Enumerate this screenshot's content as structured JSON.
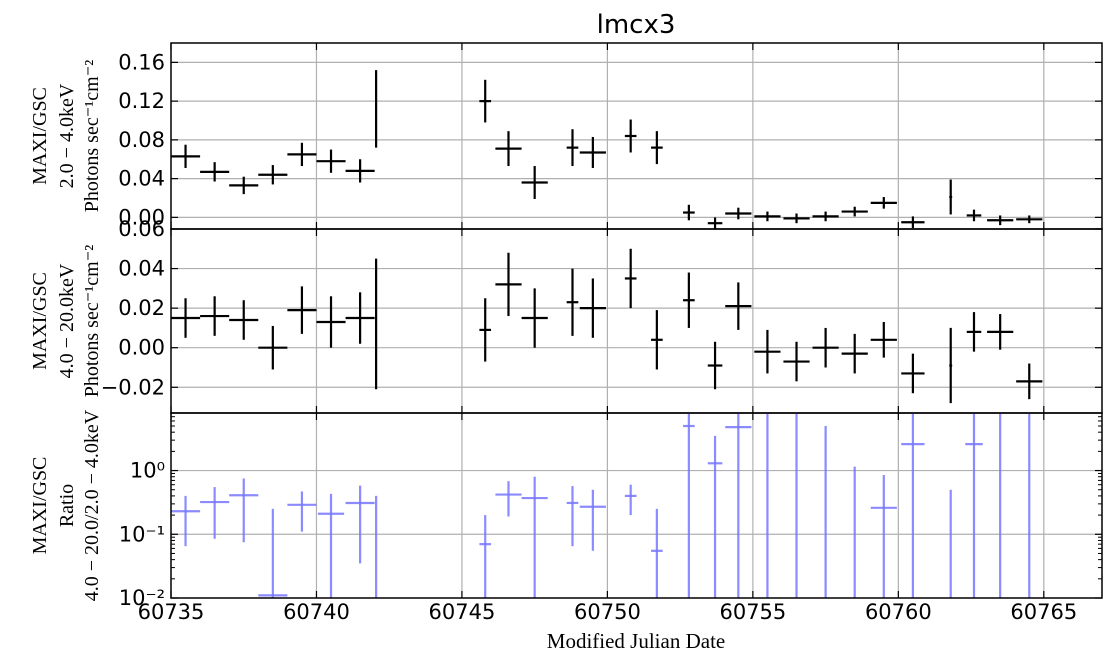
{
  "chart_data": {
    "type": "scatter",
    "title": "lmcx3",
    "xlabel": "Modified Julian Date",
    "xlim": [
      60735,
      60767
    ],
    "x_ticks": [
      60735,
      60740,
      60745,
      60750,
      60755,
      60760,
      60765
    ],
    "x_tick_labels": [
      "60735",
      "60740",
      "60745",
      "60750",
      "60755",
      "60760",
      "60765"
    ],
    "grid": true,
    "panels": [
      {
        "name": "2.0-4.0keV",
        "ylabel_lines": [
          "MAXI/GSC",
          "2.0 − 4.0keV",
          "Photons sec⁻¹cm⁻²"
        ],
        "ylim": [
          -0.012,
          0.18
        ],
        "y_ticks": [
          0,
          0.04,
          0.08,
          0.12,
          0.16
        ],
        "y_tick_labels": [
          "0.00",
          "0.04",
          "0.08",
          "0.12",
          "0.16"
        ],
        "scale": "linear",
        "color": "#000000",
        "points": [
          {
            "x": 60735.5,
            "y": 0.063,
            "xerr": 0.5,
            "yerr": 0.012
          },
          {
            "x": 60736.5,
            "y": 0.047,
            "xerr": 0.5,
            "yerr": 0.01
          },
          {
            "x": 60737.5,
            "y": 0.033,
            "xerr": 0.5,
            "yerr": 0.009
          },
          {
            "x": 60738.5,
            "y": 0.044,
            "xerr": 0.5,
            "yerr": 0.01
          },
          {
            "x": 60739.5,
            "y": 0.065,
            "xerr": 0.5,
            "yerr": 0.012
          },
          {
            "x": 60740.5,
            "y": 0.058,
            "xerr": 0.5,
            "yerr": 0.012
          },
          {
            "x": 60741.5,
            "y": 0.048,
            "xerr": 0.5,
            "yerr": 0.012
          },
          {
            "x": 60742.05,
            "y": 0.112,
            "xerr": 0.0,
            "yerr": 0.04
          },
          {
            "x": 60745.8,
            "y": 0.12,
            "xerr": 0.2,
            "yerr": 0.022
          },
          {
            "x": 60746.6,
            "y": 0.071,
            "xerr": 0.45,
            "yerr": 0.018
          },
          {
            "x": 60747.5,
            "y": 0.036,
            "xerr": 0.45,
            "yerr": 0.017
          },
          {
            "x": 60748.8,
            "y": 0.072,
            "xerr": 0.2,
            "yerr": 0.019
          },
          {
            "x": 60749.5,
            "y": 0.067,
            "xerr": 0.45,
            "yerr": 0.016
          },
          {
            "x": 60750.8,
            "y": 0.084,
            "xerr": 0.2,
            "yerr": 0.017
          },
          {
            "x": 60751.7,
            "y": 0.072,
            "xerr": 0.2,
            "yerr": 0.017
          },
          {
            "x": 60752.8,
            "y": 0.005,
            "xerr": 0.2,
            "yerr": 0.008
          },
          {
            "x": 60753.7,
            "y": -0.006,
            "xerr": 0.25,
            "yerr": 0.006
          },
          {
            "x": 60754.5,
            "y": 0.004,
            "xerr": 0.45,
            "yerr": 0.006
          },
          {
            "x": 60755.5,
            "y": 0.001,
            "xerr": 0.45,
            "yerr": 0.005
          },
          {
            "x": 60756.5,
            "y": -0.001,
            "xerr": 0.45,
            "yerr": 0.005
          },
          {
            "x": 60757.5,
            "y": 0.001,
            "xerr": 0.45,
            "yerr": 0.005
          },
          {
            "x": 60758.5,
            "y": 0.006,
            "xerr": 0.45,
            "yerr": 0.005
          },
          {
            "x": 60759.5,
            "y": 0.015,
            "xerr": 0.45,
            "yerr": 0.006
          },
          {
            "x": 60760.5,
            "y": -0.005,
            "xerr": 0.4,
            "yerr": 0.006
          },
          {
            "x": 60761.8,
            "y": 0.021,
            "xerr": 0.05,
            "yerr": 0.018
          },
          {
            "x": 60762.6,
            "y": 0.002,
            "xerr": 0.25,
            "yerr": 0.006
          },
          {
            "x": 60763.5,
            "y": -0.003,
            "xerr": 0.45,
            "yerr": 0.005
          },
          {
            "x": 60764.5,
            "y": -0.002,
            "xerr": 0.45,
            "yerr": 0.004
          }
        ]
      },
      {
        "name": "4.0-20.0keV",
        "ylabel_lines": [
          "MAXI/GSC",
          "4.0 − 20.0keV",
          "Photons sec⁻¹cm⁻²"
        ],
        "ylim": [
          -0.033,
          0.06
        ],
        "y_ticks": [
          -0.02,
          0.0,
          0.02,
          0.04,
          0.06
        ],
        "y_tick_labels": [
          "−0.02",
          "0.00",
          "0.02",
          "0.04",
          "0.06"
        ],
        "scale": "linear",
        "color": "#000000",
        "points": [
          {
            "x": 60735.5,
            "y": 0.015,
            "xerr": 0.5,
            "yerr": 0.01
          },
          {
            "x": 60736.5,
            "y": 0.016,
            "xerr": 0.5,
            "yerr": 0.01
          },
          {
            "x": 60737.5,
            "y": 0.014,
            "xerr": 0.5,
            "yerr": 0.01
          },
          {
            "x": 60738.5,
            "y": 0.0,
            "xerr": 0.5,
            "yerr": 0.011
          },
          {
            "x": 60739.5,
            "y": 0.019,
            "xerr": 0.5,
            "yerr": 0.012
          },
          {
            "x": 60740.5,
            "y": 0.013,
            "xerr": 0.5,
            "yerr": 0.013
          },
          {
            "x": 60741.5,
            "y": 0.015,
            "xerr": 0.5,
            "yerr": 0.013
          },
          {
            "x": 60742.05,
            "y": 0.012,
            "xerr": 0.0,
            "yerr": 0.033
          },
          {
            "x": 60745.8,
            "y": 0.009,
            "xerr": 0.2,
            "yerr": 0.016
          },
          {
            "x": 60746.6,
            "y": 0.032,
            "xerr": 0.45,
            "yerr": 0.016
          },
          {
            "x": 60747.5,
            "y": 0.015,
            "xerr": 0.45,
            "yerr": 0.015
          },
          {
            "x": 60748.8,
            "y": 0.023,
            "xerr": 0.2,
            "yerr": 0.017
          },
          {
            "x": 60749.5,
            "y": 0.02,
            "xerr": 0.45,
            "yerr": 0.015
          },
          {
            "x": 60750.8,
            "y": 0.035,
            "xerr": 0.2,
            "yerr": 0.015
          },
          {
            "x": 60751.7,
            "y": 0.004,
            "xerr": 0.2,
            "yerr": 0.015
          },
          {
            "x": 60752.8,
            "y": 0.024,
            "xerr": 0.2,
            "yerr": 0.014
          },
          {
            "x": 60753.7,
            "y": -0.009,
            "xerr": 0.25,
            "yerr": 0.012
          },
          {
            "x": 60754.5,
            "y": 0.021,
            "xerr": 0.45,
            "yerr": 0.012
          },
          {
            "x": 60755.5,
            "y": -0.002,
            "xerr": 0.45,
            "yerr": 0.011
          },
          {
            "x": 60756.5,
            "y": -0.007,
            "xerr": 0.45,
            "yerr": 0.01
          },
          {
            "x": 60757.5,
            "y": 0.0,
            "xerr": 0.45,
            "yerr": 0.01
          },
          {
            "x": 60758.5,
            "y": -0.003,
            "xerr": 0.45,
            "yerr": 0.01
          },
          {
            "x": 60759.5,
            "y": 0.004,
            "xerr": 0.45,
            "yerr": 0.009
          },
          {
            "x": 60760.5,
            "y": -0.013,
            "xerr": 0.4,
            "yerr": 0.01
          },
          {
            "x": 60761.8,
            "y": -0.009,
            "xerr": 0.05,
            "yerr": 0.019
          },
          {
            "x": 60762.6,
            "y": 0.008,
            "xerr": 0.25,
            "yerr": 0.01
          },
          {
            "x": 60763.5,
            "y": 0.008,
            "xerr": 0.45,
            "yerr": 0.009
          },
          {
            "x": 60764.5,
            "y": -0.017,
            "xerr": 0.45,
            "yerr": 0.009
          }
        ]
      },
      {
        "name": "ratio",
        "ylabel_lines": [
          "MAXI/GSC",
          "Ratio",
          "4.0 − 20.0/2.0 − 4.0keV"
        ],
        "ylim": [
          0.01,
          8.0
        ],
        "y_ticks": [
          0.01,
          0.1,
          1.0
        ],
        "y_tick_labels": [
          "10⁻²",
          "10⁻¹",
          "10⁰"
        ],
        "scale": "log",
        "color": "#7777ff",
        "points": [
          {
            "x": 60735.5,
            "y": 0.23,
            "xerr": 0.5,
            "ylo": 0.065,
            "yhi": 0.4
          },
          {
            "x": 60736.5,
            "y": 0.32,
            "xerr": 0.5,
            "ylo": 0.085,
            "yhi": 0.55
          },
          {
            "x": 60737.5,
            "y": 0.41,
            "xerr": 0.5,
            "ylo": 0.075,
            "yhi": 0.75
          },
          {
            "x": 60738.5,
            "y": 0.011,
            "xerr": 0.5,
            "ylo": 0.01,
            "yhi": 0.25
          },
          {
            "x": 60739.5,
            "y": 0.29,
            "xerr": 0.5,
            "ylo": 0.11,
            "yhi": 0.47
          },
          {
            "x": 60740.5,
            "y": 0.21,
            "xerr": 0.45,
            "ylo": 0.01,
            "yhi": 0.43
          },
          {
            "x": 60741.5,
            "y": 0.31,
            "xerr": 0.5,
            "ylo": 0.035,
            "yhi": 0.58
          },
          {
            "x": 60742.05,
            "y": 0.1,
            "xerr": 0.0,
            "ylo": 0.01,
            "yhi": 0.4
          },
          {
            "x": 60745.8,
            "y": 0.07,
            "xerr": 0.2,
            "ylo": 0.01,
            "yhi": 0.2
          },
          {
            "x": 60746.6,
            "y": 0.42,
            "xerr": 0.45,
            "ylo": 0.19,
            "yhi": 0.68
          },
          {
            "x": 60747.5,
            "y": 0.37,
            "xerr": 0.45,
            "ylo": 0.01,
            "yhi": 0.8
          },
          {
            "x": 60748.8,
            "y": 0.31,
            "xerr": 0.2,
            "ylo": 0.065,
            "yhi": 0.57
          },
          {
            "x": 60749.5,
            "y": 0.27,
            "xerr": 0.45,
            "ylo": 0.055,
            "yhi": 0.5
          },
          {
            "x": 60750.8,
            "y": 0.4,
            "xerr": 0.2,
            "ylo": 0.2,
            "yhi": 0.6
          },
          {
            "x": 60751.7,
            "y": 0.055,
            "xerr": 0.2,
            "ylo": 0.01,
            "yhi": 0.25
          },
          {
            "x": 60752.8,
            "y": 5.0,
            "xerr": 0.2,
            "ylo": 0.01,
            "yhi": 8.0
          },
          {
            "x": 60753.7,
            "y": 1.3,
            "xerr": 0.25,
            "ylo": 0.01,
            "yhi": 3.5
          },
          {
            "x": 60754.5,
            "y": 4.8,
            "xerr": 0.45,
            "ylo": 0.01,
            "yhi": 8.0
          },
          {
            "x": 60755.5,
            "y": null,
            "xerr": 0.0,
            "ylo": 0.01,
            "yhi": 8.0
          },
          {
            "x": 60756.5,
            "y": null,
            "xerr": 0.0,
            "ylo": 0.01,
            "yhi": 8.0
          },
          {
            "x": 60757.5,
            "y": null,
            "xerr": 0.0,
            "ylo": 0.01,
            "yhi": 5.0
          },
          {
            "x": 60758.5,
            "y": null,
            "xerr": 0.0,
            "ylo": 0.01,
            "yhi": 1.15
          },
          {
            "x": 60759.5,
            "y": 0.26,
            "xerr": 0.45,
            "ylo": 0.01,
            "yhi": 0.85
          },
          {
            "x": 60760.5,
            "y": 2.6,
            "xerr": 0.4,
            "ylo": 0.01,
            "yhi": 8.0
          },
          {
            "x": 60761.8,
            "y": null,
            "xerr": 0.0,
            "ylo": 0.01,
            "yhi": 0.5
          },
          {
            "x": 60762.6,
            "y": 2.6,
            "xerr": 0.3,
            "ylo": 0.01,
            "yhi": 8.0
          },
          {
            "x": 60763.5,
            "y": null,
            "xerr": 0.0,
            "ylo": 0.01,
            "yhi": 8.0
          },
          {
            "x": 60764.5,
            "y": null,
            "xerr": 0.0,
            "ylo": 0.01,
            "yhi": 8.0
          }
        ]
      }
    ]
  }
}
